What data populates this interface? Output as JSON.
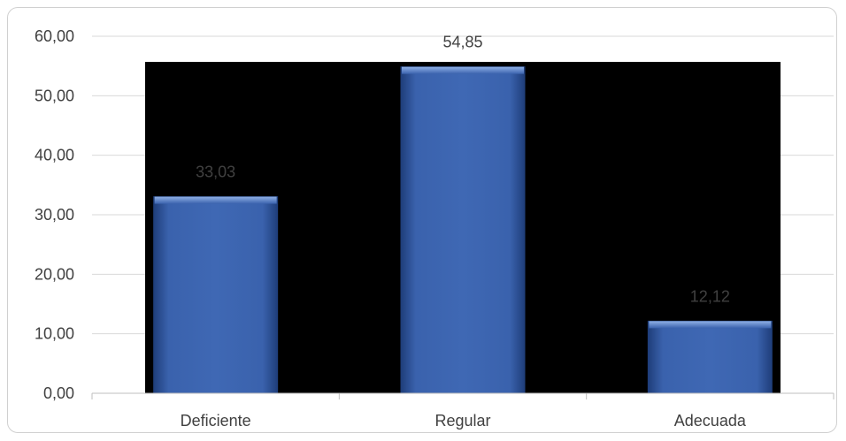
{
  "chart_data": {
    "type": "bar",
    "title": "",
    "xlabel": "",
    "ylabel": "",
    "categories": [
      "Deficiente",
      "Regular",
      "Adecuada"
    ],
    "values": [
      33.03,
      54.85,
      12.12
    ],
    "value_labels": [
      "33,03",
      "54,85",
      "12,12"
    ],
    "ylim": [
      0,
      60
    ],
    "yticks": [
      0,
      10,
      20,
      30,
      40,
      50,
      60
    ],
    "ytick_labels": [
      "0,00",
      "10,00",
      "20,00",
      "30,00",
      "40,00",
      "50,00",
      "60,00"
    ],
    "grid": true,
    "legend": "none",
    "colors": {
      "bar": "#3a62ad",
      "bar_highlight": "#6f95d8",
      "bar_shadow": "#1f3e7a",
      "plot_background": "#000000",
      "gridline": "#d9d9d9",
      "axis_text": "#404040",
      "label_on_dark": "#404040",
      "label_on_light": "#404040"
    }
  }
}
